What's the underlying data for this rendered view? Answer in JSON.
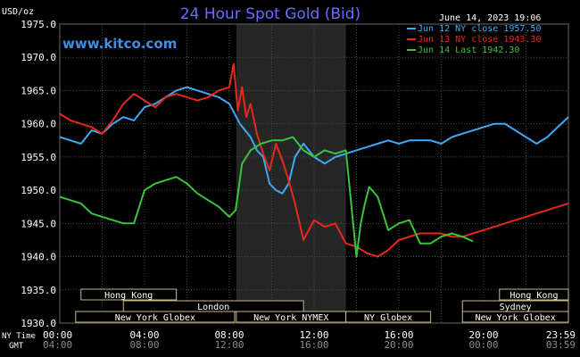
{
  "chart_data": {
    "type": "line",
    "title": "24 Hour Spot Gold (Bid)",
    "watermark": "www.kitco.com",
    "date_stamp": "June 14, 2023 19:06",
    "ylabel": "USD/oz",
    "ylim": [
      1930,
      1975
    ],
    "y_ticks": [
      "1975.0",
      "1970.0",
      "1965.0",
      "1960.0",
      "1955.0",
      "1950.0",
      "1945.0",
      "1940.0",
      "1935.0",
      "1930.0"
    ],
    "x_time_label": "NY Time",
    "x_gmt_label": "GMT",
    "x_ticks_ny": [
      "00:00",
      "04:00",
      "08:00",
      "12:00",
      "16:00",
      "20:00",
      "23:59"
    ],
    "x_ticks_gmt": [
      "04:00",
      "08:00",
      "12:00",
      "16:00",
      "20:00",
      "00:00",
      "03:59"
    ],
    "grid": true,
    "legend_position": "top-right",
    "shaded_session": {
      "from": 8.33,
      "to": 13.5
    },
    "sessions": [
      {
        "label": "Hong Kong",
        "row": 0,
        "from": 1,
        "to": 5.5
      },
      {
        "label": "Hong Kong",
        "row": 0,
        "from": 20.75,
        "to": 24
      },
      {
        "label": "London",
        "row": 1,
        "from": 3,
        "to": 11.5
      },
      {
        "label": "Sydney",
        "row": 1,
        "from": 19,
        "to": 24
      },
      {
        "label": "New York Globex",
        "row": 2,
        "from": 0.75,
        "to": 8.25
      },
      {
        "label": "New York NYMEX",
        "row": 2,
        "from": 8.33,
        "to": 13.5
      },
      {
        "label": "NY Globex",
        "row": 2,
        "from": 13.5,
        "to": 17.5
      },
      {
        "label": "New York Globex",
        "row": 2,
        "from": 19,
        "to": 24
      }
    ],
    "series": [
      {
        "name": "Jun 12 NY close 1957.50",
        "color": "#3fa9f5",
        "x": [
          0,
          0.5,
          1,
          1.5,
          2,
          2.5,
          3,
          3.5,
          4,
          4.5,
          5,
          5.5,
          6,
          6.5,
          7,
          7.5,
          8,
          8.5,
          9,
          9.3,
          9.6,
          9.9,
          10.2,
          10.5,
          10.8,
          11.1,
          11.5,
          12,
          12.5,
          13,
          13.5,
          14,
          14.5,
          15,
          15.5,
          16,
          16.5,
          17,
          17.5,
          18,
          18.5,
          19,
          19.5,
          20,
          20.5,
          21,
          21.5,
          22,
          22.5,
          23,
          23.5,
          24
        ],
        "y": [
          1958,
          1957.5,
          1957,
          1959,
          1958.5,
          1960,
          1961,
          1960.5,
          1962.5,
          1963,
          1964,
          1965,
          1965.5,
          1965,
          1964.5,
          1964,
          1963,
          1960,
          1958,
          1956,
          1955,
          1951,
          1950,
          1949.5,
          1951,
          1955,
          1957,
          1955,
          1954,
          1955,
          1955.5,
          1956,
          1956.5,
          1957,
          1957.5,
          1957,
          1957.5,
          1957.5,
          1957.5,
          1957,
          1958,
          1958.5,
          1959,
          1959.5,
          1960,
          1960,
          1959,
          1958,
          1957,
          1958,
          1959.5,
          1961
        ]
      },
      {
        "name": "Jun 13 NY close 1943.30",
        "color": "#e8281e",
        "x": [
          0,
          0.5,
          1,
          1.5,
          2,
          2.5,
          3,
          3.5,
          4,
          4.5,
          5,
          5.5,
          6,
          6.5,
          7,
          7.5,
          8,
          8.2,
          8.4,
          8.6,
          8.8,
          9,
          9.3,
          9.6,
          9.9,
          10.2,
          10.5,
          10.8,
          11.1,
          11.5,
          12,
          12.5,
          13,
          13.5,
          14,
          14.5,
          15,
          15.5,
          16,
          16.5,
          17,
          17.5,
          18,
          18.5,
          19,
          19.5,
          20,
          20.5,
          21,
          21.5,
          22,
          22.5,
          23,
          23.5,
          24
        ],
        "y": [
          1961.5,
          1960.5,
          1960,
          1959.5,
          1958.5,
          1960.5,
          1963,
          1964.5,
          1963.5,
          1962.5,
          1964,
          1964.5,
          1964,
          1963.5,
          1964,
          1965,
          1965.5,
          1969,
          1962,
          1965.5,
          1961,
          1963,
          1958.5,
          1955.5,
          1953,
          1957,
          1954.5,
          1951.5,
          1948,
          1942.5,
          1945.5,
          1944.5,
          1945,
          1942,
          1941.5,
          1940.5,
          1940,
          1941,
          1942.5,
          1943,
          1943.5,
          1943.5,
          1943.5,
          1943,
          1943,
          1943.5,
          1944,
          1944.5,
          1945,
          1945.5,
          1946,
          1946.5,
          1947,
          1947.5,
          1948
        ]
      },
      {
        "name": "Jun 14 Last 1942.30",
        "color": "#3cc33c",
        "x": [
          0,
          0.5,
          1,
          1.5,
          2,
          2.5,
          3,
          3.5,
          4,
          4.5,
          5,
          5.5,
          6,
          6.5,
          7,
          7.5,
          8,
          8.3,
          8.6,
          9,
          9.5,
          10,
          10.5,
          11,
          11.5,
          12,
          12.5,
          13,
          13.5,
          14,
          14.2,
          14.4,
          14.6,
          15,
          15.5,
          16,
          16.5,
          17,
          17.5,
          18,
          18.5,
          19,
          19.5
        ],
        "y": [
          1949,
          1948.5,
          1948,
          1946.5,
          1946,
          1945.5,
          1945,
          1945,
          1950,
          1951,
          1951.5,
          1952,
          1951,
          1949.5,
          1948.5,
          1947.5,
          1946,
          1947,
          1954,
          1956,
          1957,
          1957.5,
          1957.5,
          1958,
          1956,
          1955,
          1956,
          1955.5,
          1956,
          1940,
          1945,
          1948,
          1950.5,
          1949,
          1944,
          1945,
          1945.5,
          1942,
          1942,
          1943,
          1943.5,
          1943,
          1942.3
        ]
      }
    ]
  }
}
